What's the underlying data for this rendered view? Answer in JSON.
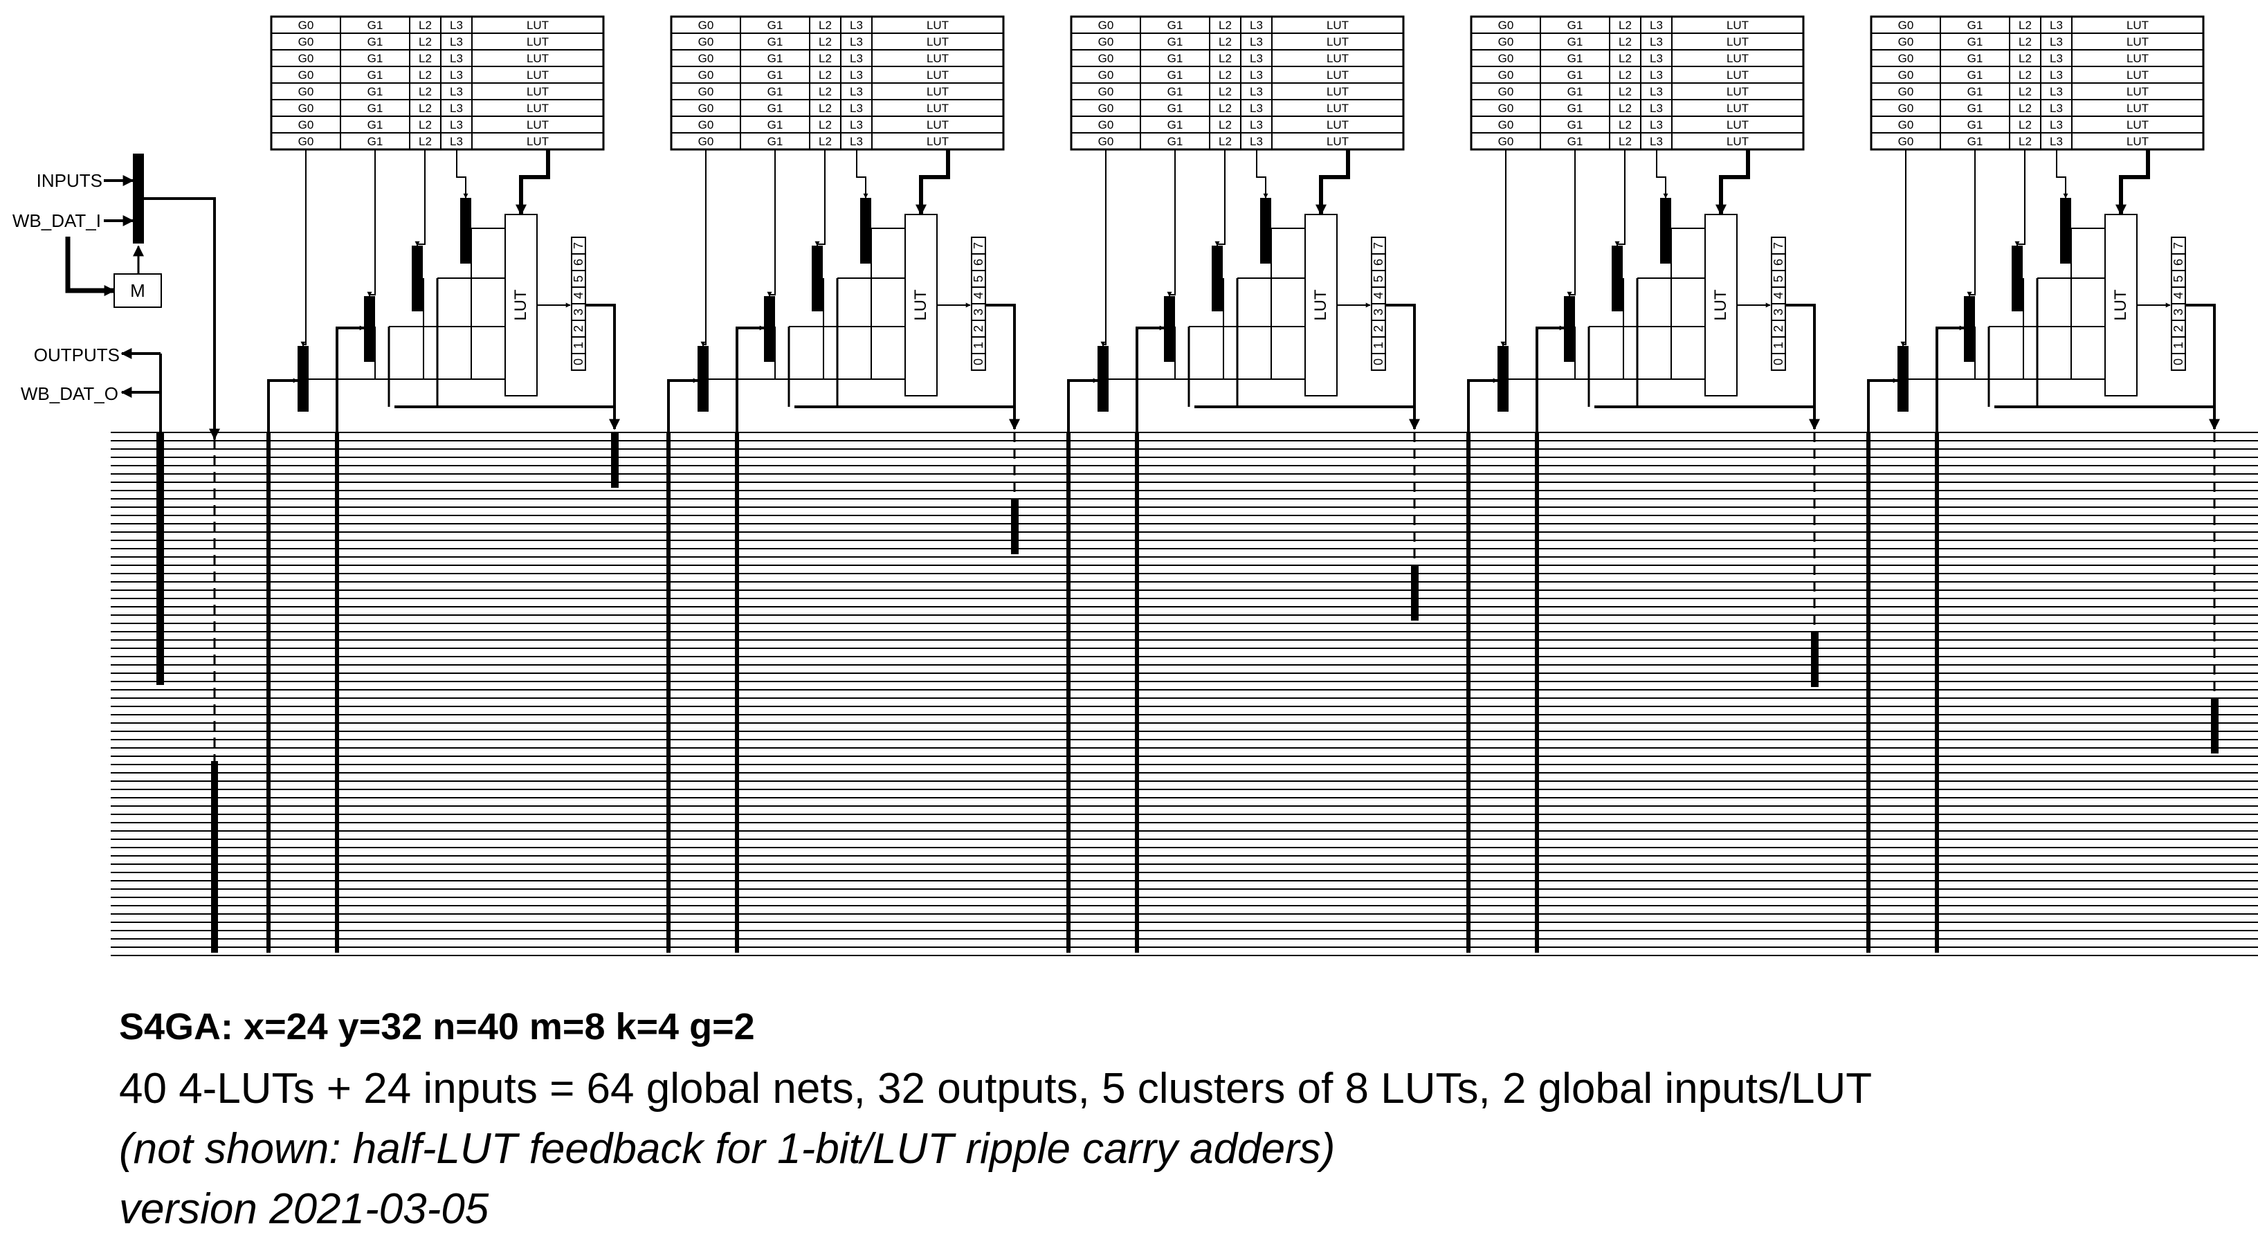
{
  "left_labels": {
    "inputs": "INPUTS",
    "wb_dat_i": "WB_DAT_I",
    "outputs": "OUTPUTS",
    "wb_dat_o": "WB_DAT_O",
    "mux_box": "M"
  },
  "config_table": {
    "columns": [
      "G0",
      "G1",
      "L2",
      "L3",
      "LUT"
    ],
    "row_count": 8
  },
  "lut_block_label": "LUT",
  "output_register_bits": [
    "0",
    "1",
    "2",
    "3",
    "4",
    "5",
    "6",
    "7"
  ],
  "cluster_count": 5,
  "global_net_line_count": 64,
  "caption": {
    "title": "S4GA: x=24 y=32 n=40 m=8 k=4 g=2",
    "line1": "40 4-LUTs + 24 inputs = 64 global nets, 32 outputs, 5 clusters of 8 LUTs, 2 global inputs/LUT",
    "line2": "(not shown: half-LUT feedback for 1-bit/LUT ripple carry adders)",
    "line3": "version 2021-03-05"
  },
  "colors": {
    "ink": "#000000",
    "background": "#ffffff"
  }
}
